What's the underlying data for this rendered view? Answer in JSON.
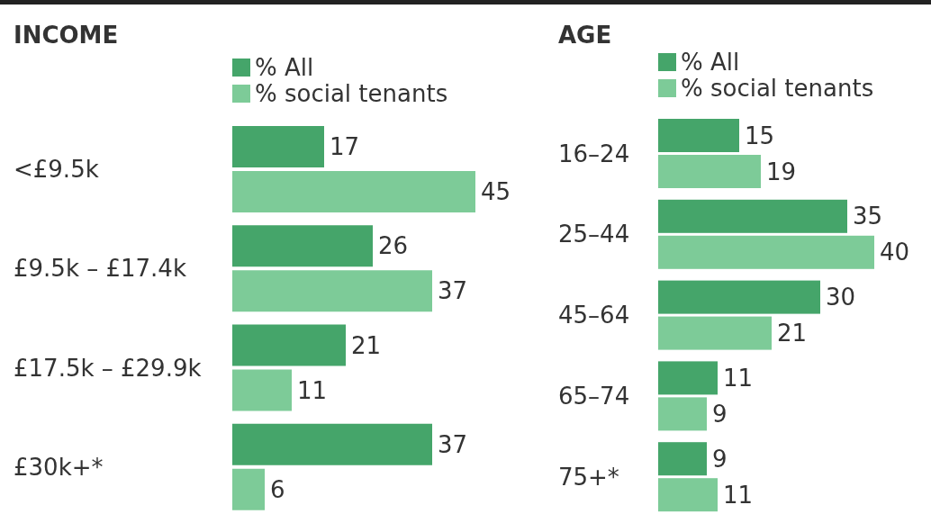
{
  "chart_data": [
    {
      "type": "bar",
      "orientation": "horizontal",
      "title": "INCOME",
      "categories": [
        "<£9.5k",
        "£9.5k – £17.4k",
        "£17.5k – £29.9k",
        "£30k+*"
      ],
      "tick_labels": "y",
      "data_labels": true,
      "legend": "top",
      "series": [
        {
          "name": "% All",
          "color": "#45a56a",
          "values": [
            17,
            26,
            21,
            37
          ]
        },
        {
          "name": "% social tenants",
          "color": "#7dcb98",
          "values": [
            45,
            37,
            11,
            6
          ]
        }
      ]
    },
    {
      "type": "bar",
      "orientation": "horizontal",
      "title": "AGE",
      "categories": [
        "16–24",
        "25–44",
        "45–64",
        "65–74",
        "75+*"
      ],
      "tick_labels": "y",
      "data_labels": true,
      "legend": "top",
      "series": [
        {
          "name": "% All",
          "color": "#45a56a",
          "values": [
            15,
            35,
            30,
            11,
            9
          ]
        },
        {
          "name": "% social tenants",
          "color": "#7dcb98",
          "values": [
            19,
            40,
            21,
            9,
            11
          ]
        }
      ]
    }
  ]
}
